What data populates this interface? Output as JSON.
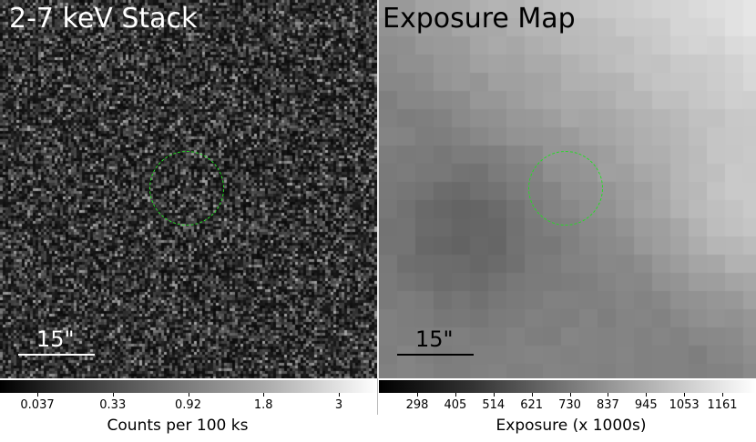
{
  "left_panel": {
    "title": "2-7 keV Stack",
    "scale_label": "15\"",
    "colorbar": {
      "ticks": [
        "0.037",
        "0.33",
        "0.92",
        "1.8",
        "3"
      ],
      "label": "Counts per 100 ks"
    }
  },
  "right_panel": {
    "title": "Exposure Map",
    "scale_label": "15\"",
    "colorbar": {
      "ticks": [
        "298",
        "405",
        "514",
        "621",
        "730",
        "837",
        "945",
        "1053",
        "1161"
      ],
      "label": "Exposure (x 1000s)"
    }
  },
  "colors": {
    "region_circle": "#22dd22",
    "noise_background": "#1c1c1c",
    "exposure_background": "#8f8f8f"
  },
  "icons": {
    "region": "dashed-circle"
  }
}
